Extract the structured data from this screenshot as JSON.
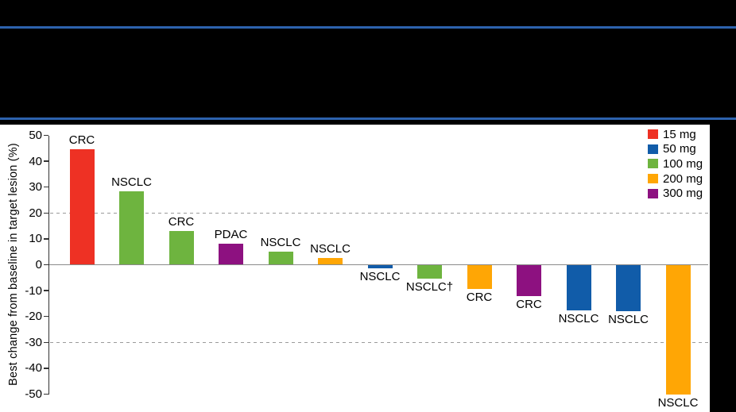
{
  "header": {
    "background": "#000000",
    "separator_color": "#2D62AD"
  },
  "chart_data": {
    "type": "bar",
    "title": "",
    "ylabel": "Best change from baseline in target lesion (%)",
    "ylim": [
      -50,
      50
    ],
    "yticks": [
      50,
      40,
      30,
      20,
      10,
      0,
      -10,
      -20,
      -30,
      -40,
      -50
    ],
    "reference_lines": [
      20,
      -30
    ],
    "grid": "off",
    "legend_position": "top-right",
    "legend": [
      {
        "label": "15 mg",
        "color": "#EE3124"
      },
      {
        "label": "50 mg",
        "color": "#115CA9"
      },
      {
        "label": "100 mg",
        "color": "#6EB43F"
      },
      {
        "label": "200 mg",
        "color": "#FFA605"
      },
      {
        "label": "300 mg",
        "color": "#8D1180"
      }
    ],
    "bars": [
      {
        "label": "CRC",
        "dose": "15 mg",
        "value": 44.5
      },
      {
        "label": "NSCLC",
        "dose": "100 mg",
        "value": 28.5
      },
      {
        "label": "CRC",
        "dose": "100 mg",
        "value": 13
      },
      {
        "label": "PDAC",
        "dose": "300 mg",
        "value": 8
      },
      {
        "label": "NSCLC",
        "dose": "100 mg",
        "value": 5
      },
      {
        "label": "NSCLC",
        "dose": "200 mg",
        "value": 2.5
      },
      {
        "label": "NSCLC",
        "dose": "50 mg",
        "value": -1.5
      },
      {
        "label": "NSCLC†",
        "dose": "100 mg",
        "value": -5.5
      },
      {
        "label": "CRC",
        "dose": "200 mg",
        "value": -9.5
      },
      {
        "label": "CRC",
        "dose": "300 mg",
        "value": -12
      },
      {
        "label": "NSCLC",
        "dose": "50 mg",
        "value": -17.5
      },
      {
        "label": "NSCLC",
        "dose": "50 mg",
        "value": -18
      },
      {
        "label": "NSCLC",
        "dose": "200 mg",
        "value": -50
      }
    ]
  }
}
